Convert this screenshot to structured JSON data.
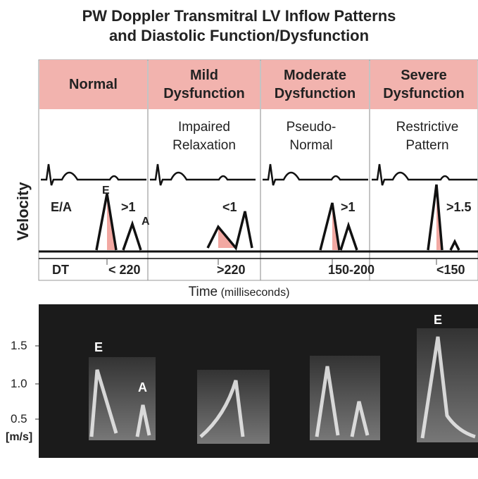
{
  "title": [
    "PW Doppler Transmitral LV Inflow Patterns",
    "and Diastolic Function/Dysfunction"
  ],
  "y_axis_label": "Velocity",
  "row_labels": {
    "ea": "E/A",
    "dt": "DT"
  },
  "columns": [
    {
      "heading": "Normal",
      "ea": ">1",
      "dt": "< 220"
    },
    {
      "heading": "Mild Dysfunction",
      "pattern": "Impaired Relaxation",
      "ea": "<1",
      "dt": ">220"
    },
    {
      "heading": "Moderate Dysfunction",
      "pattern": "Pseudo-Normal",
      "ea": ">1",
      "dt": "150-200"
    },
    {
      "heading": "Severe Dysfunction",
      "pattern": "Restrictive Pattern",
      "ea": ">1.5",
      "dt": "<150"
    }
  ],
  "wave_labels": {
    "e": "E",
    "a": "A"
  },
  "time_label": {
    "text": "Time",
    "unit": "(milliseconds)"
  },
  "echo": {
    "y_ticks": [
      "1.5",
      "1.0",
      "0.5"
    ],
    "unit": "[m/s]",
    "labels": [
      "E",
      "A",
      "E"
    ]
  }
}
